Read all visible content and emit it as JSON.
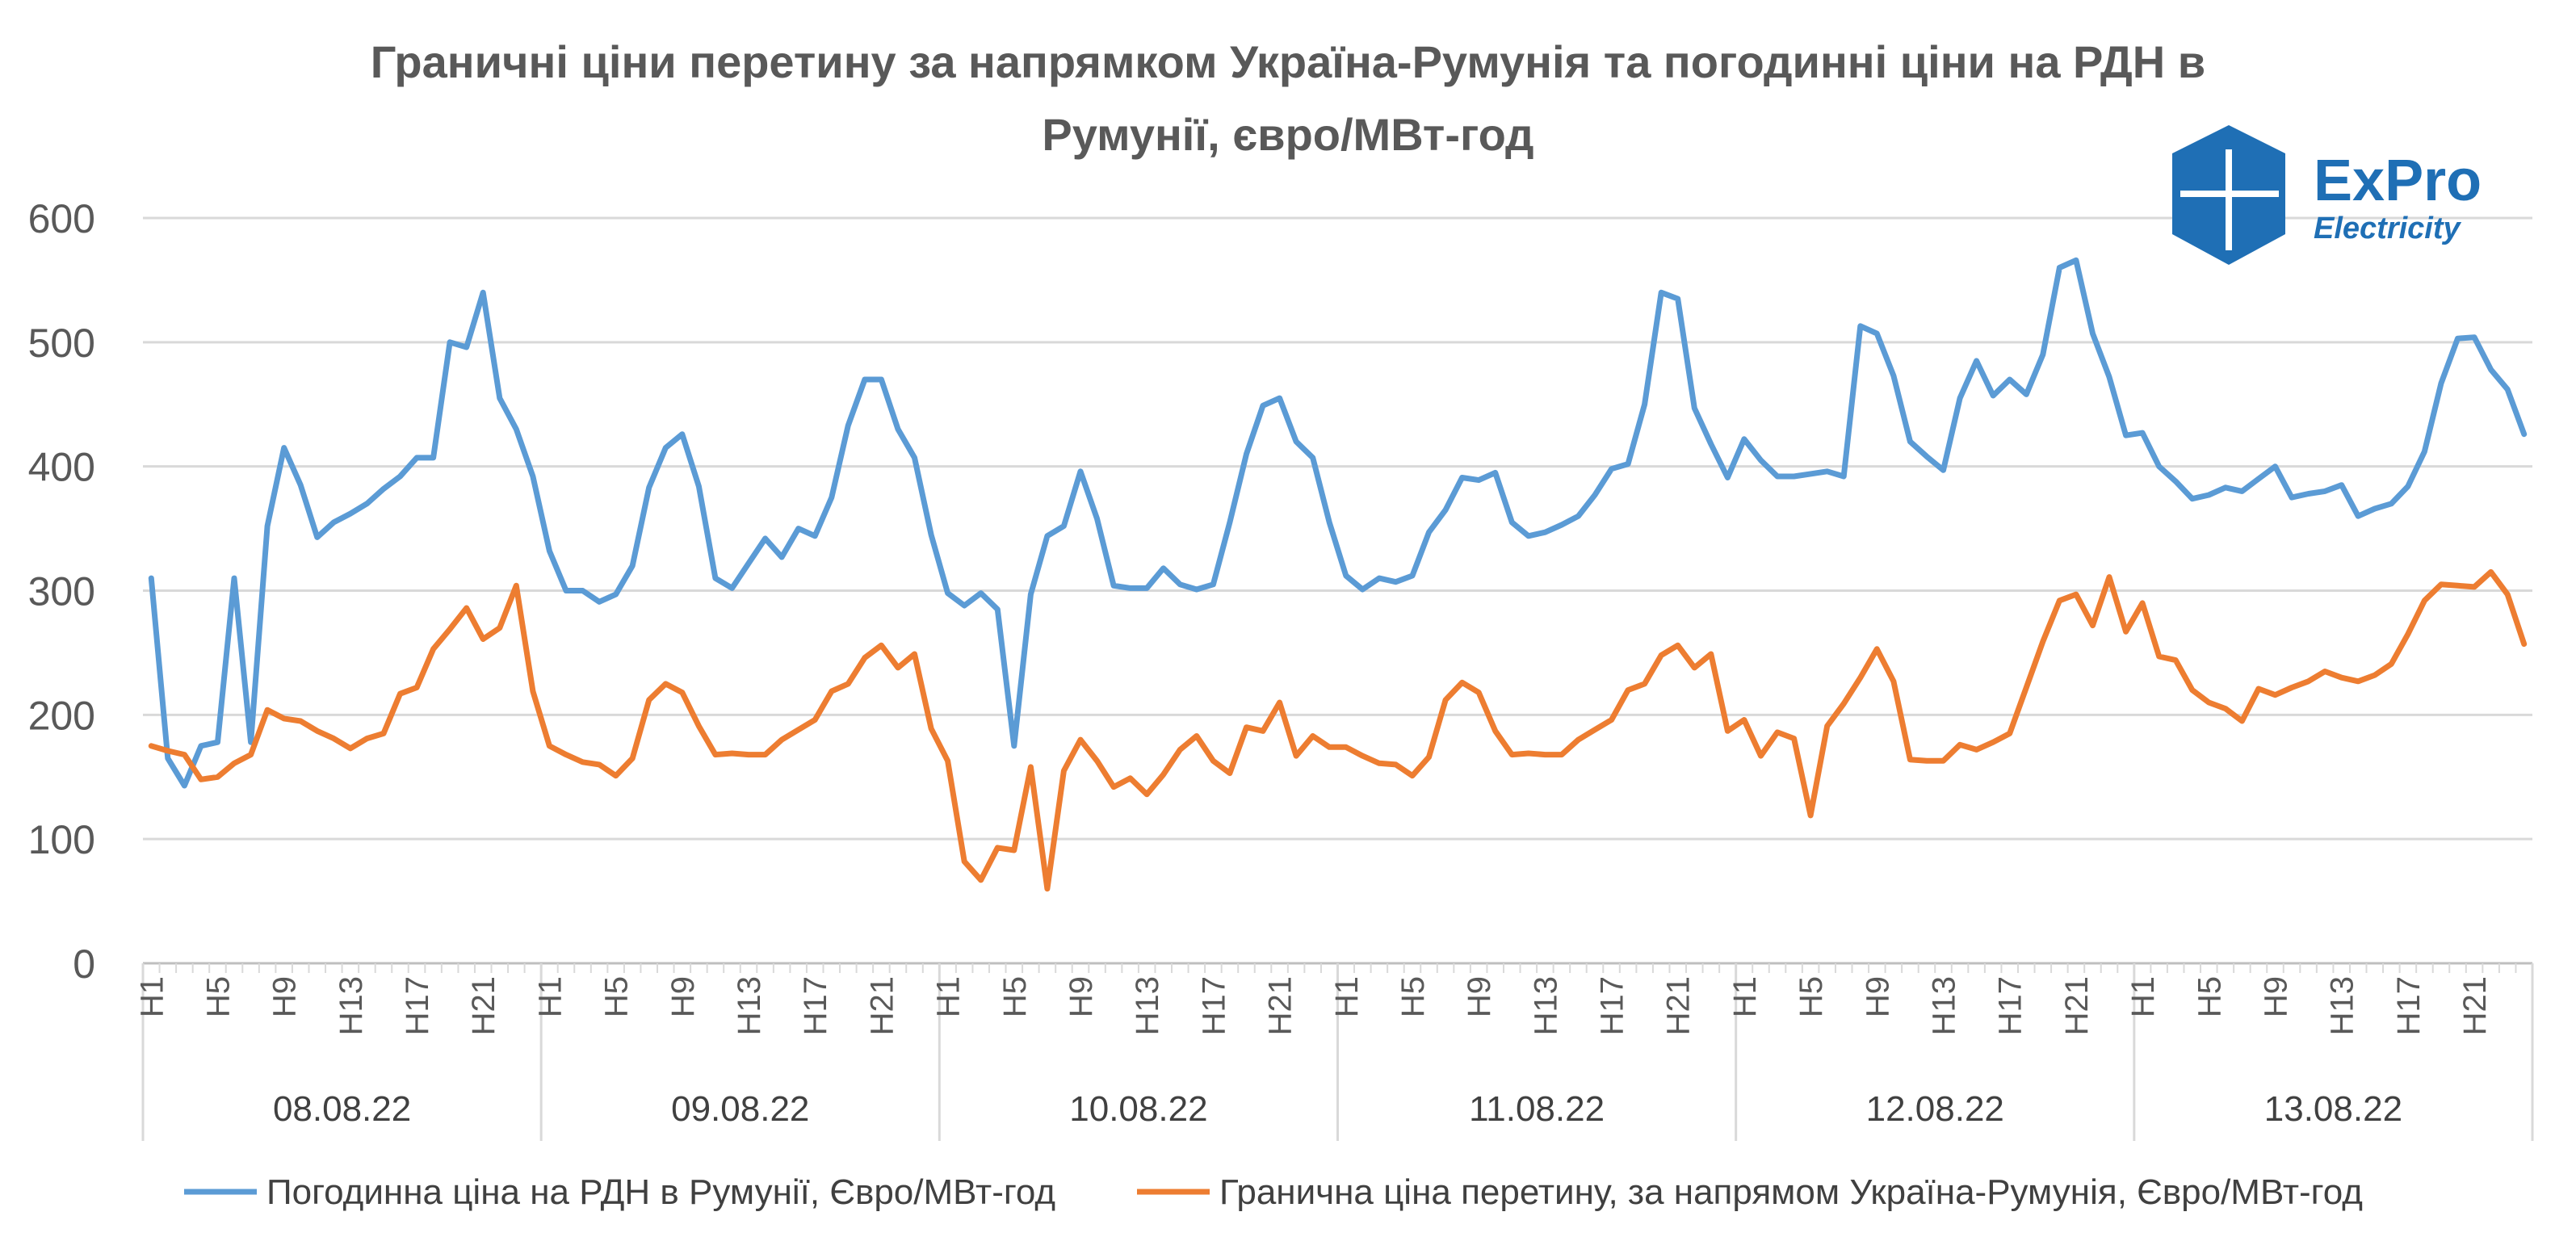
{
  "logo": {
    "name": "ExPro",
    "sub": "Electricity",
    "color": "#1f6fb5"
  },
  "chart_data": {
    "type": "line",
    "title_line1": "Граничні ціни перетину за напрямком Україна-Румунія та погодинні ціни на РДН в",
    "title_line2": "Румунії, євро/МВт-год",
    "ylim": [
      0,
      600
    ],
    "yticks": [
      0,
      100,
      200,
      300,
      400,
      500,
      600
    ],
    "grid": true,
    "legend_position": "bottom",
    "days": [
      "08.08.22",
      "09.08.22",
      "10.08.22",
      "11.08.22",
      "12.08.22",
      "13.08.22"
    ],
    "hour_labels": [
      "H1",
      "H5",
      "H9",
      "H13",
      "H17",
      "H21"
    ],
    "series": [
      {
        "name": "Погодинна ціна на РДН в Румунії, Євро/МВт-год",
        "color": "#5b9bd5",
        "values": [
          310,
          165,
          143,
          175,
          178,
          310,
          178,
          352,
          415,
          385,
          343,
          355,
          362,
          370,
          382,
          392,
          407,
          407,
          500,
          496,
          540,
          455,
          430,
          392,
          332,
          300,
          300,
          291,
          297,
          320,
          383,
          415,
          426,
          384,
          310,
          302,
          322,
          342,
          327,
          350,
          344,
          375,
          433,
          470,
          470,
          430,
          407,
          345,
          298,
          288,
          298,
          285,
          175,
          297,
          344,
          352,
          396,
          358,
          304,
          302,
          302,
          318,
          305,
          301,
          305,
          355,
          410,
          449,
          455,
          420,
          407,
          355,
          312,
          301,
          310,
          307,
          312,
          347,
          365,
          391,
          389,
          395,
          355,
          344,
          347,
          353,
          360,
          377,
          398,
          402,
          450,
          540,
          535,
          447,
          418,
          391,
          422,
          405,
          392,
          392,
          394,
          396,
          392,
          513,
          507,
          473,
          420,
          408,
          397,
          455,
          485,
          457,
          470,
          458,
          490,
          560,
          566,
          507,
          472,
          425,
          427,
          400,
          388,
          374,
          377,
          383,
          380,
          390,
          400,
          375,
          378,
          380,
          385,
          360,
          366,
          370,
          384,
          412,
          467,
          503,
          504,
          478,
          462,
          426
        ]
      },
      {
        "name": "Гранична ціна перетину, за напрямом Україна-Румунія, Євро/МВт-год",
        "color": "#ed7d31",
        "values": [
          175,
          171,
          168,
          148,
          150,
          161,
          168,
          204,
          197,
          195,
          187,
          181,
          173,
          181,
          185,
          217,
          222,
          253,
          269,
          286,
          261,
          270,
          304,
          219,
          175,
          168,
          162,
          160,
          151,
          165,
          212,
          225,
          218,
          191,
          168,
          169,
          168,
          168,
          180,
          188,
          196,
          219,
          225,
          246,
          256,
          238,
          249,
          189,
          163,
          82,
          67,
          93,
          91,
          158,
          60,
          155,
          180,
          163,
          142,
          149,
          136,
          152,
          172,
          183,
          163,
          153,
          190,
          187,
          210,
          167,
          183,
          174,
          174,
          167,
          161,
          160,
          151,
          166,
          212,
          226,
          218,
          187,
          168,
          169,
          168,
          168,
          180,
          188,
          196,
          220,
          225,
          248,
          256,
          238,
          249,
          187,
          196,
          167,
          186,
          181,
          119,
          191,
          209,
          230,
          253,
          227,
          164,
          163,
          163,
          176,
          172,
          178,
          185,
          222,
          259,
          292,
          297,
          272,
          311,
          267,
          290,
          247,
          244,
          220,
          210,
          205,
          195,
          221,
          216,
          222,
          227,
          235,
          230,
          227,
          232,
          241,
          265,
          292,
          305,
          304,
          303,
          315,
          297,
          257
        ]
      }
    ]
  }
}
